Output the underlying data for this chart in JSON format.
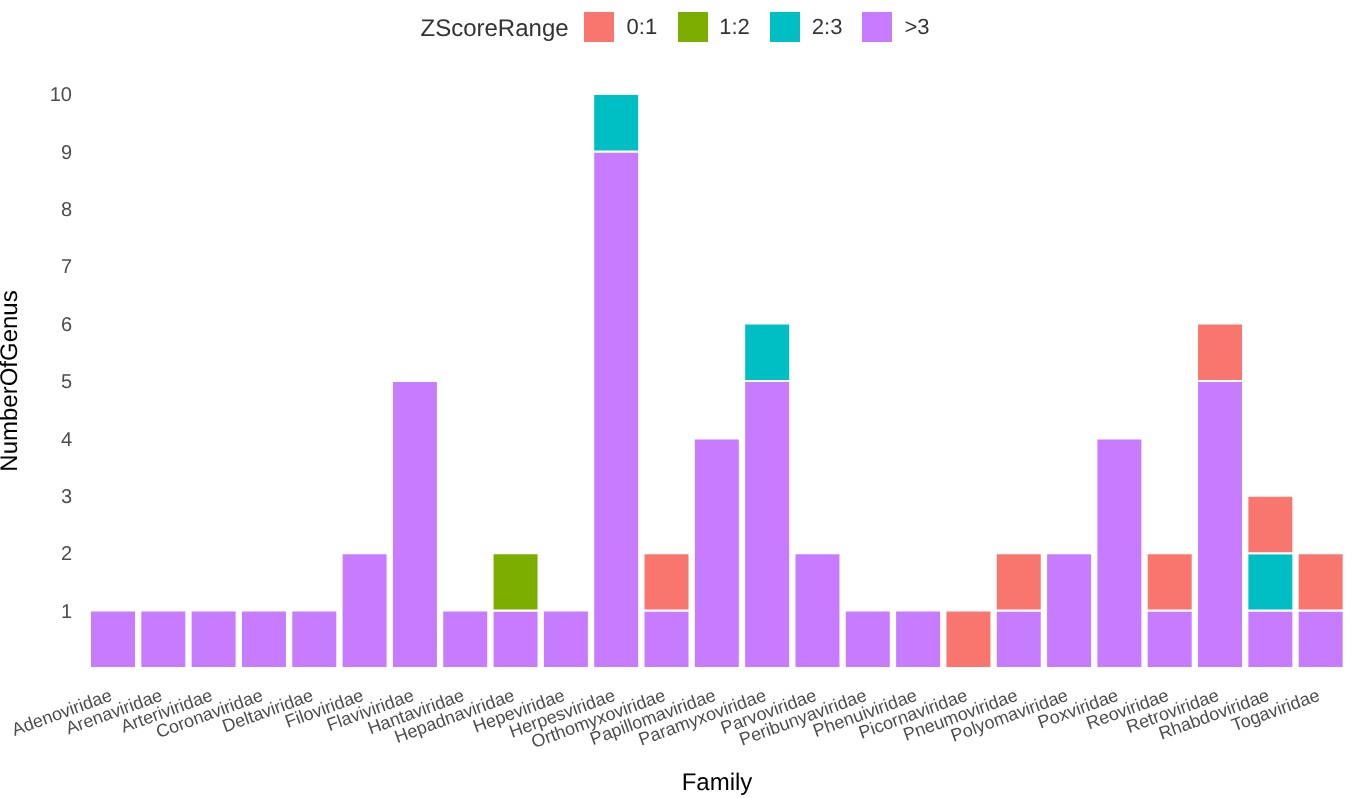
{
  "chart_data": {
    "type": "bar",
    "stacked": true,
    "xlabel": "Family",
    "ylabel": "NumberOfGenus",
    "legend_title": "ZScoreRange",
    "legend": "top",
    "grid": false,
    "categories": [
      "Adenoviridae",
      "Arenaviridae",
      "Arteriviridae",
      "Coronaviridae",
      "Deltaviridae",
      "Filoviridae",
      "Flaviviridae",
      "Hantaviridae",
      "Hepadnaviridae",
      "Hepeviridae",
      "Herpesviridae",
      "Orthomyxoviridae",
      "Papillomaviridae",
      "Paramyxoviridae",
      "Parvoviridae",
      "Peribunyaviridae",
      "Phenuiviridae",
      "Picornaviridae",
      "Pneumoviridae",
      "Polyomaviridae",
      "Poxviridae",
      "Reoviridae",
      "Retroviridae",
      "Rhabdoviridae",
      "Togaviridae"
    ],
    "ylim": [
      0,
      10
    ],
    "yticks": [
      1,
      2,
      3,
      4,
      5,
      6,
      7,
      8,
      9,
      10
    ],
    "series": [
      {
        "name": ">3",
        "color": "#c77cff",
        "values": [
          1,
          1,
          1,
          1,
          1,
          2,
          5,
          1,
          1,
          1,
          9,
          1,
          4,
          5,
          2,
          1,
          1,
          null,
          1,
          2,
          4,
          1,
          5,
          1,
          1
        ]
      },
      {
        "name": "2:3",
        "color": "#00bfc4",
        "values": [
          null,
          null,
          null,
          null,
          null,
          null,
          null,
          null,
          null,
          null,
          1,
          null,
          null,
          1,
          null,
          null,
          null,
          null,
          null,
          null,
          null,
          null,
          null,
          1,
          null
        ]
      },
      {
        "name": "1:2",
        "color": "#7cae00",
        "values": [
          null,
          null,
          null,
          null,
          null,
          null,
          null,
          null,
          1,
          null,
          null,
          null,
          null,
          null,
          null,
          null,
          null,
          null,
          null,
          null,
          null,
          null,
          null,
          null,
          null
        ]
      },
      {
        "name": "0:1",
        "color": "#f8766d",
        "values": [
          null,
          null,
          null,
          null,
          null,
          null,
          null,
          null,
          null,
          null,
          null,
          1,
          null,
          null,
          null,
          null,
          null,
          1,
          1,
          null,
          null,
          1,
          1,
          1,
          1
        ]
      }
    ]
  }
}
